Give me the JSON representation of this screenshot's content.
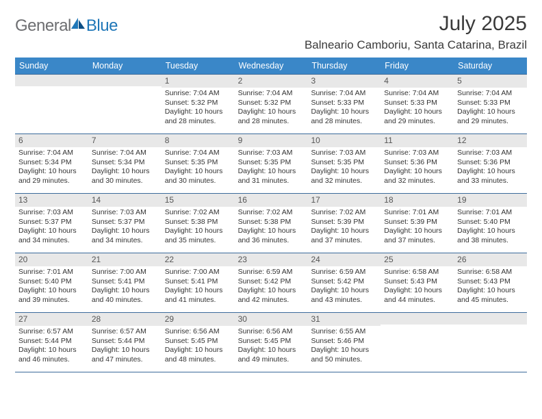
{
  "logo": {
    "general": "General",
    "blue": "Blue"
  },
  "title": "July 2025",
  "location": "Balneario Camboriu, Santa Catarina, Brazil",
  "colors": {
    "header_bar": "#3a87c8",
    "week_divider": "#3a6a9a",
    "day_num_bg": "#e8e8e8",
    "text": "#333333"
  },
  "daysOfWeek": [
    "Sunday",
    "Monday",
    "Tuesday",
    "Wednesday",
    "Thursday",
    "Friday",
    "Saturday"
  ],
  "weeks": [
    [
      {
        "n": "",
        "lines": []
      },
      {
        "n": "",
        "lines": []
      },
      {
        "n": "1",
        "lines": [
          "Sunrise: 7:04 AM",
          "Sunset: 5:32 PM",
          "Daylight: 10 hours",
          "and 28 minutes."
        ]
      },
      {
        "n": "2",
        "lines": [
          "Sunrise: 7:04 AM",
          "Sunset: 5:32 PM",
          "Daylight: 10 hours",
          "and 28 minutes."
        ]
      },
      {
        "n": "3",
        "lines": [
          "Sunrise: 7:04 AM",
          "Sunset: 5:33 PM",
          "Daylight: 10 hours",
          "and 28 minutes."
        ]
      },
      {
        "n": "4",
        "lines": [
          "Sunrise: 7:04 AM",
          "Sunset: 5:33 PM",
          "Daylight: 10 hours",
          "and 29 minutes."
        ]
      },
      {
        "n": "5",
        "lines": [
          "Sunrise: 7:04 AM",
          "Sunset: 5:33 PM",
          "Daylight: 10 hours",
          "and 29 minutes."
        ]
      }
    ],
    [
      {
        "n": "6",
        "lines": [
          "Sunrise: 7:04 AM",
          "Sunset: 5:34 PM",
          "Daylight: 10 hours",
          "and 29 minutes."
        ]
      },
      {
        "n": "7",
        "lines": [
          "Sunrise: 7:04 AM",
          "Sunset: 5:34 PM",
          "Daylight: 10 hours",
          "and 30 minutes."
        ]
      },
      {
        "n": "8",
        "lines": [
          "Sunrise: 7:04 AM",
          "Sunset: 5:35 PM",
          "Daylight: 10 hours",
          "and 30 minutes."
        ]
      },
      {
        "n": "9",
        "lines": [
          "Sunrise: 7:03 AM",
          "Sunset: 5:35 PM",
          "Daylight: 10 hours",
          "and 31 minutes."
        ]
      },
      {
        "n": "10",
        "lines": [
          "Sunrise: 7:03 AM",
          "Sunset: 5:35 PM",
          "Daylight: 10 hours",
          "and 32 minutes."
        ]
      },
      {
        "n": "11",
        "lines": [
          "Sunrise: 7:03 AM",
          "Sunset: 5:36 PM",
          "Daylight: 10 hours",
          "and 32 minutes."
        ]
      },
      {
        "n": "12",
        "lines": [
          "Sunrise: 7:03 AM",
          "Sunset: 5:36 PM",
          "Daylight: 10 hours",
          "and 33 minutes."
        ]
      }
    ],
    [
      {
        "n": "13",
        "lines": [
          "Sunrise: 7:03 AM",
          "Sunset: 5:37 PM",
          "Daylight: 10 hours",
          "and 34 minutes."
        ]
      },
      {
        "n": "14",
        "lines": [
          "Sunrise: 7:03 AM",
          "Sunset: 5:37 PM",
          "Daylight: 10 hours",
          "and 34 minutes."
        ]
      },
      {
        "n": "15",
        "lines": [
          "Sunrise: 7:02 AM",
          "Sunset: 5:38 PM",
          "Daylight: 10 hours",
          "and 35 minutes."
        ]
      },
      {
        "n": "16",
        "lines": [
          "Sunrise: 7:02 AM",
          "Sunset: 5:38 PM",
          "Daylight: 10 hours",
          "and 36 minutes."
        ]
      },
      {
        "n": "17",
        "lines": [
          "Sunrise: 7:02 AM",
          "Sunset: 5:39 PM",
          "Daylight: 10 hours",
          "and 37 minutes."
        ]
      },
      {
        "n": "18",
        "lines": [
          "Sunrise: 7:01 AM",
          "Sunset: 5:39 PM",
          "Daylight: 10 hours",
          "and 37 minutes."
        ]
      },
      {
        "n": "19",
        "lines": [
          "Sunrise: 7:01 AM",
          "Sunset: 5:40 PM",
          "Daylight: 10 hours",
          "and 38 minutes."
        ]
      }
    ],
    [
      {
        "n": "20",
        "lines": [
          "Sunrise: 7:01 AM",
          "Sunset: 5:40 PM",
          "Daylight: 10 hours",
          "and 39 minutes."
        ]
      },
      {
        "n": "21",
        "lines": [
          "Sunrise: 7:00 AM",
          "Sunset: 5:41 PM",
          "Daylight: 10 hours",
          "and 40 minutes."
        ]
      },
      {
        "n": "22",
        "lines": [
          "Sunrise: 7:00 AM",
          "Sunset: 5:41 PM",
          "Daylight: 10 hours",
          "and 41 minutes."
        ]
      },
      {
        "n": "23",
        "lines": [
          "Sunrise: 6:59 AM",
          "Sunset: 5:42 PM",
          "Daylight: 10 hours",
          "and 42 minutes."
        ]
      },
      {
        "n": "24",
        "lines": [
          "Sunrise: 6:59 AM",
          "Sunset: 5:42 PM",
          "Daylight: 10 hours",
          "and 43 minutes."
        ]
      },
      {
        "n": "25",
        "lines": [
          "Sunrise: 6:58 AM",
          "Sunset: 5:43 PM",
          "Daylight: 10 hours",
          "and 44 minutes."
        ]
      },
      {
        "n": "26",
        "lines": [
          "Sunrise: 6:58 AM",
          "Sunset: 5:43 PM",
          "Daylight: 10 hours",
          "and 45 minutes."
        ]
      }
    ],
    [
      {
        "n": "27",
        "lines": [
          "Sunrise: 6:57 AM",
          "Sunset: 5:44 PM",
          "Daylight: 10 hours",
          "and 46 minutes."
        ]
      },
      {
        "n": "28",
        "lines": [
          "Sunrise: 6:57 AM",
          "Sunset: 5:44 PM",
          "Daylight: 10 hours",
          "and 47 minutes."
        ]
      },
      {
        "n": "29",
        "lines": [
          "Sunrise: 6:56 AM",
          "Sunset: 5:45 PM",
          "Daylight: 10 hours",
          "and 48 minutes."
        ]
      },
      {
        "n": "30",
        "lines": [
          "Sunrise: 6:56 AM",
          "Sunset: 5:45 PM",
          "Daylight: 10 hours",
          "and 49 minutes."
        ]
      },
      {
        "n": "31",
        "lines": [
          "Sunrise: 6:55 AM",
          "Sunset: 5:46 PM",
          "Daylight: 10 hours",
          "and 50 minutes."
        ]
      },
      {
        "n": "",
        "lines": []
      },
      {
        "n": "",
        "lines": []
      }
    ]
  ]
}
